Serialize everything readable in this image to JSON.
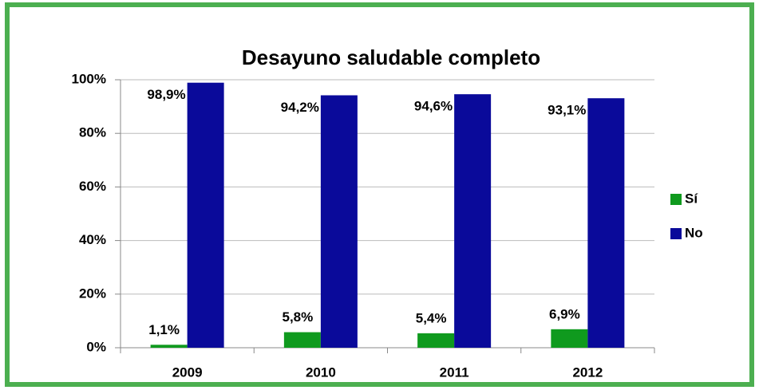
{
  "chart_data": {
    "type": "bar",
    "title": "Desayuno saludable completo",
    "categories": [
      "2009",
      "2010",
      "2011",
      "2012"
    ],
    "series": [
      {
        "name": "Sí",
        "color": "#0f9a1e",
        "values": [
          1.1,
          5.8,
          5.4,
          6.9
        ],
        "value_labels": [
          "1,1%",
          "5,8%",
          "5,4%",
          "6,9%"
        ]
      },
      {
        "name": "No",
        "color": "#0a0a9a",
        "values": [
          98.9,
          94.2,
          94.6,
          93.1
        ],
        "value_labels": [
          "98,9%",
          "94,2%",
          "94,6%",
          "93,1%"
        ]
      }
    ],
    "ylim": [
      0,
      100
    ],
    "yticks": [
      {
        "value": 0,
        "label": "0%"
      },
      {
        "value": 20,
        "label": "20%"
      },
      {
        "value": 40,
        "label": "40%"
      },
      {
        "value": 60,
        "label": "60%"
      },
      {
        "value": 80,
        "label": "80%"
      },
      {
        "value": 100,
        "label": "100%"
      }
    ],
    "grid": true,
    "legend": "right"
  }
}
